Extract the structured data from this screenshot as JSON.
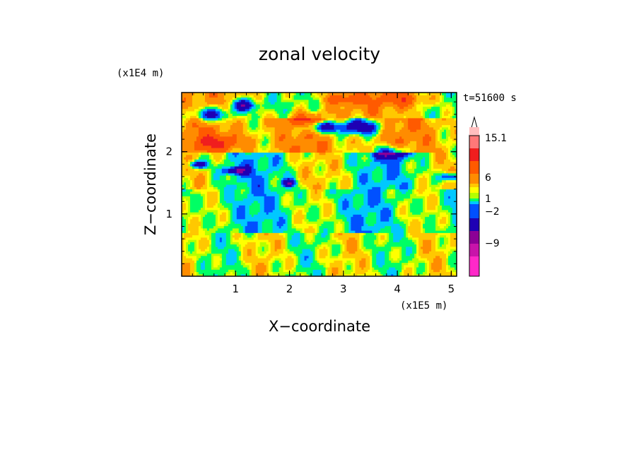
{
  "chart_data": {
    "type": "heatmap",
    "title": "zonal velocity",
    "time_label": "t=51600 s",
    "xlabel": "X−coordinate",
    "ylabel": "Z−coordinate",
    "x_scale_label": "(x1E5 m)",
    "y_scale_label": "(x1E4 m)",
    "xlim": [
      0,
      5.1
    ],
    "ylim": [
      0,
      2.95
    ],
    "x_ticks": [
      "1",
      "2",
      "3",
      "4",
      "5"
    ],
    "y_ticks": [
      "1",
      "2"
    ],
    "colorbar": {
      "labels": [
        "15.1",
        "6",
        "1",
        "−2",
        "−9"
      ],
      "extend_max": true,
      "levels": [
        {
          "color": "#ff28c8"
        },
        {
          "color": "#c814aa"
        },
        {
          "color": "#8c0096"
        },
        {
          "color": "#1e00b4"
        },
        {
          "color": "#0050ff"
        },
        {
          "color": "#00c8ff"
        },
        {
          "color": "#00ff64"
        },
        {
          "color": "#b4ff00"
        },
        {
          "color": "#ffff00"
        },
        {
          "color": "#ffc800"
        },
        {
          "color": "#ff8c00"
        },
        {
          "color": "#ff5a00"
        },
        {
          "color": "#f01e1e"
        },
        {
          "color": "#ff7878"
        },
        {
          "color": "#ffbebe"
        }
      ]
    },
    "bands": [
      {
        "z_range": [
          2.55,
          2.95
        ],
        "dominant": "cyan / yellow / orange",
        "note": "strong negative (blue) near x=0.5 and x=3.3"
      },
      {
        "z_range": [
          2.0,
          2.55
        ],
        "dominant": "orange / yellow",
        "note": "blue band from x=2.3 to x=4.2"
      },
      {
        "z_range": [
          1.4,
          2.0
        ],
        "dominant": "green / cyan",
        "note": "blue cores near x=0.3, 1.0, 2.0, 5.0"
      },
      {
        "z_range": [
          0.7,
          1.4
        ],
        "dominant": "green / yellow"
      },
      {
        "z_range": [
          0.0,
          0.7
        ],
        "dominant": "yellow / green"
      }
    ]
  }
}
